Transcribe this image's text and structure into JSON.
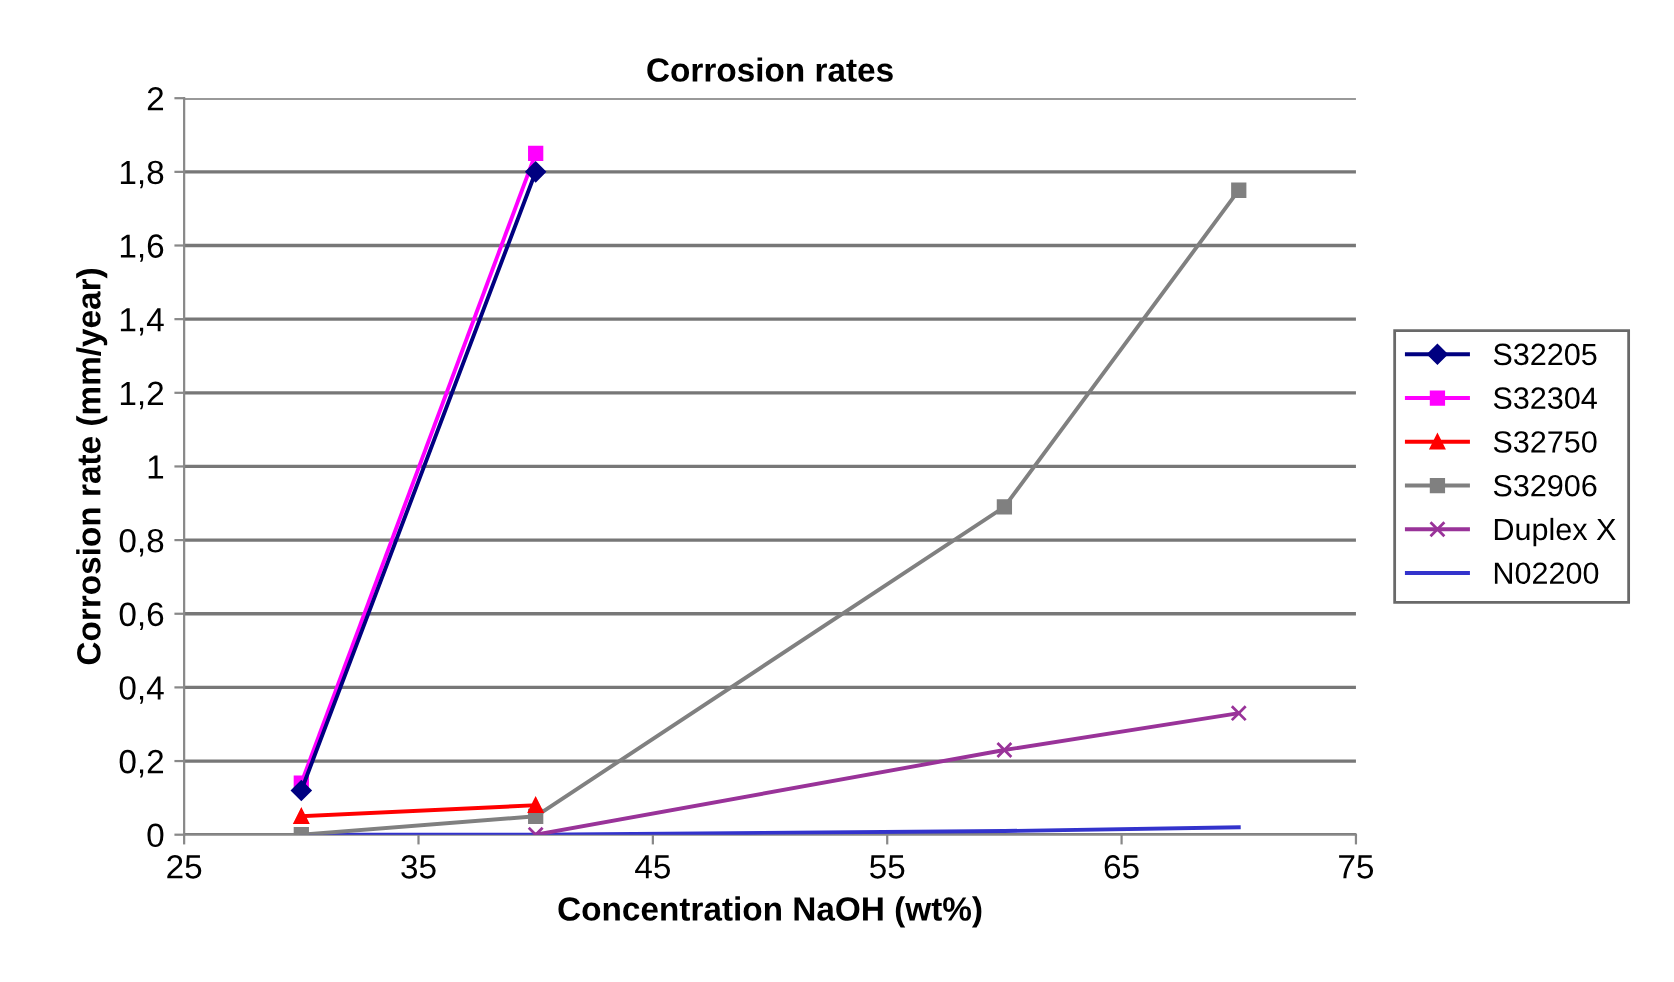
{
  "chart_data": {
    "type": "line",
    "title": "Corrosion rates",
    "xlabel": "Concentration NaOH (wt%)",
    "ylabel": "Corrosion rate (mm/year)",
    "xlim": [
      25,
      75
    ],
    "xticks": [
      25,
      35,
      45,
      55,
      65,
      75
    ],
    "ylim": [
      0,
      2
    ],
    "yticks": [
      0,
      {
        "value": 0.2,
        "label": "0,2"
      },
      {
        "value": 0.4,
        "label": "0,4"
      },
      {
        "value": 0.6,
        "label": "0,6"
      },
      {
        "value": 0.8,
        "label": "0,8"
      },
      1,
      {
        "value": 1.2,
        "label": "1,2"
      },
      {
        "value": 1.4,
        "label": "1,4"
      },
      {
        "value": 1.6,
        "label": "1,6"
      },
      {
        "value": 1.8,
        "label": "1,8"
      },
      2
    ],
    "grid": "y",
    "legend": "right",
    "series": [
      {
        "name": "S32205",
        "color": "#000080",
        "marker": "diamond",
        "x": [
          30,
          40
        ],
        "values": [
          0.12,
          1.8
        ]
      },
      {
        "name": "S32304",
        "color": "#ff00ff",
        "marker": "square",
        "x": [
          30,
          40
        ],
        "values": [
          0.14,
          1.85
        ]
      },
      {
        "name": "S32750",
        "color": "#ff0000",
        "marker": "triangle",
        "x": [
          30,
          40
        ],
        "values": [
          0.05,
          0.08
        ]
      },
      {
        "name": "S32906",
        "color": "#808080",
        "marker": "square",
        "x": [
          30,
          40,
          60,
          70
        ],
        "values": [
          0.0,
          0.05,
          0.89,
          1.75
        ]
      },
      {
        "name": "Duplex X",
        "color": "#993399",
        "marker": "cross",
        "x": [
          40,
          60,
          70
        ],
        "values": [
          0.0,
          0.23,
          0.33
        ]
      },
      {
        "name": "N02200",
        "color": "#3333cc",
        "marker": "none",
        "x": [
          30,
          40,
          60,
          70
        ],
        "values": [
          0.0,
          0.0,
          0.01,
          0.02
        ]
      }
    ]
  }
}
